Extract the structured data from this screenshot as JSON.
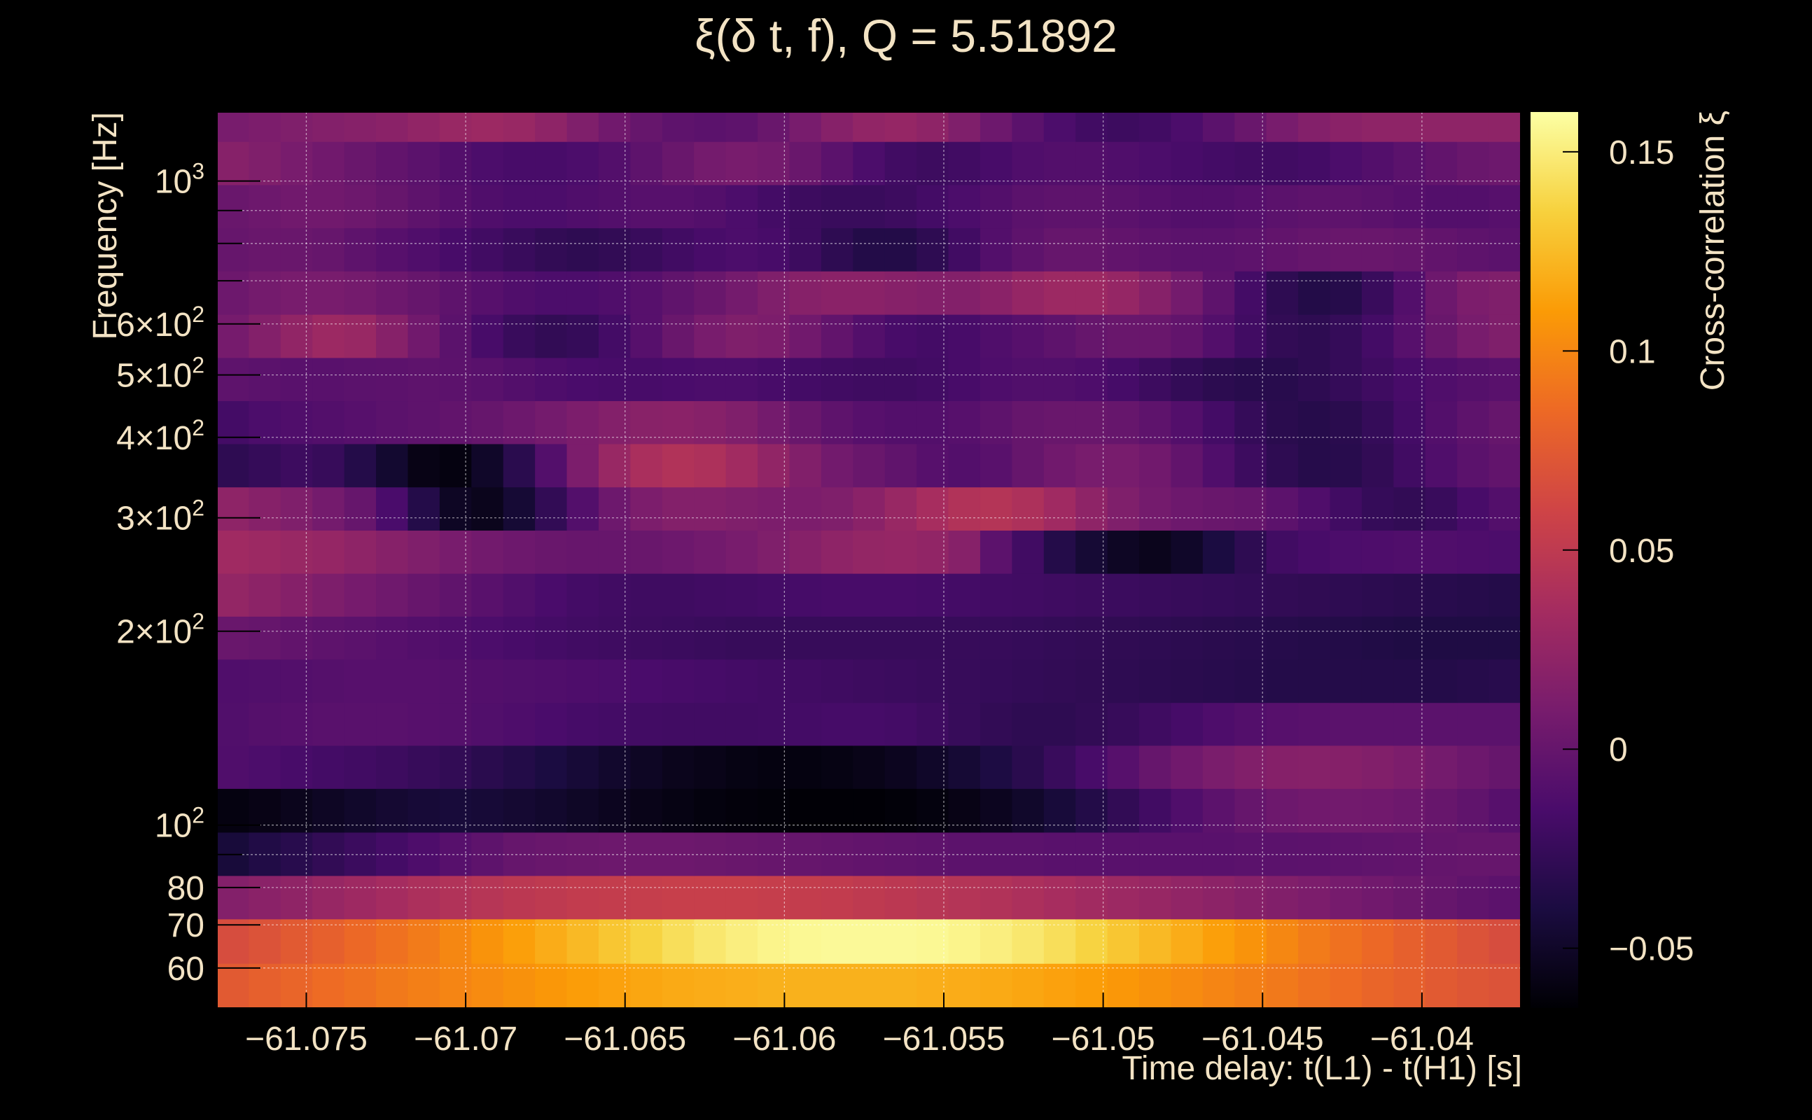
{
  "chart_data": {
    "type": "heatmap",
    "title": "ξ(δ t, f), Q = 5.51892",
    "xlabel": "Time delay: t(L1) - t(H1) [s]",
    "ylabel": "Frequency [Hz]",
    "colorbar_label": "Cross-correlation ξ",
    "xlim": [
      -61.0778,
      -61.0369
    ],
    "ylim": [
      52,
      1280
    ],
    "yscale": "log",
    "clim": [
      -0.065,
      0.16
    ],
    "x_ticks": [
      {
        "value": -61.075,
        "label": "−61.075"
      },
      {
        "value": -61.07,
        "label": "−61.07"
      },
      {
        "value": -61.065,
        "label": "−61.065"
      },
      {
        "value": -61.06,
        "label": "−61.06"
      },
      {
        "value": -61.055,
        "label": "−61.055"
      },
      {
        "value": -61.05,
        "label": "−61.05"
      },
      {
        "value": -61.045,
        "label": "−61.045"
      },
      {
        "value": -61.04,
        "label": "−61.04"
      }
    ],
    "y_ticks": [
      {
        "value": 60,
        "label": "60"
      },
      {
        "value": 70,
        "label": "70"
      },
      {
        "value": 80,
        "label": "80"
      },
      {
        "value": 100,
        "mant": "10",
        "exp": "2"
      },
      {
        "value": 200,
        "mant": "2×10",
        "exp": "2"
      },
      {
        "value": 300,
        "mant": "3×10",
        "exp": "2"
      },
      {
        "value": 400,
        "mant": "4×10",
        "exp": "2"
      },
      {
        "value": 500,
        "mant": "5×10",
        "exp": "2"
      },
      {
        "value": 600,
        "mant": "6×10",
        "exp": "2"
      },
      {
        "value": 1000,
        "mant": "10",
        "exp": "3"
      }
    ],
    "y_minor_ticks": [
      90,
      700,
      800,
      900
    ],
    "colorbar_ticks": [
      {
        "value": -0.05,
        "label": "−0.05"
      },
      {
        "value": 0,
        "label": "0"
      },
      {
        "value": 0.05,
        "label": "0.05"
      },
      {
        "value": 0.1,
        "label": "0.1"
      },
      {
        "value": 0.15,
        "label": "0.15"
      }
    ],
    "grid": true,
    "colormap_stops": [
      "#000004",
      "#1b0c41",
      "#4a0c6b",
      "#781c6d",
      "#a52c60",
      "#cf4446",
      "#ed6925",
      "#fb9b06",
      "#f7d13d",
      "#fcffa4"
    ],
    "time_bins": 41,
    "freq_bins": [
      {
        "low": 52,
        "high": 61
      },
      {
        "low": 61,
        "high": 71.5
      },
      {
        "low": 71.5,
        "high": 83.5
      },
      {
        "low": 83.5,
        "high": 97.5
      },
      {
        "low": 97.5,
        "high": 114
      },
      {
        "low": 114,
        "high": 133
      },
      {
        "low": 133,
        "high": 155
      },
      {
        "low": 155,
        "high": 181
      },
      {
        "low": 181,
        "high": 211
      },
      {
        "low": 211,
        "high": 246
      },
      {
        "low": 246,
        "high": 287
      },
      {
        "low": 287,
        "high": 335
      },
      {
        "low": 335,
        "high": 391
      },
      {
        "low": 391,
        "high": 456
      },
      {
        "low": 456,
        "high": 532
      },
      {
        "low": 532,
        "high": 621
      },
      {
        "low": 621,
        "high": 725
      },
      {
        "low": 725,
        "high": 846
      },
      {
        "low": 846,
        "high": 987
      },
      {
        "low": 987,
        "high": 1152
      },
      {
        "low": 1152,
        "high": 1280
      }
    ],
    "cells": [
      [
        0.075,
        0.079,
        0.082,
        0.086,
        0.089,
        0.093,
        0.096,
        0.099,
        0.102,
        0.105,
        0.108,
        0.111,
        0.113,
        0.115,
        0.117,
        0.118,
        0.119,
        0.12,
        0.12,
        0.12,
        0.12,
        0.12,
        0.119,
        0.118,
        0.117,
        0.115,
        0.113,
        0.111,
        0.108,
        0.105,
        0.102,
        0.099,
        0.096,
        0.093,
        0.089,
        0.086,
        0.082,
        0.079,
        0.075,
        0.072,
        0.07
      ],
      [
        0.066,
        0.07,
        0.075,
        0.079,
        0.084,
        0.089,
        0.094,
        0.1,
        0.106,
        0.112,
        0.118,
        0.124,
        0.13,
        0.136,
        0.142,
        0.147,
        0.151,
        0.154,
        0.156,
        0.157,
        0.157,
        0.157,
        0.156,
        0.154,
        0.151,
        0.147,
        0.142,
        0.136,
        0.13,
        0.124,
        0.118,
        0.112,
        0.106,
        0.1,
        0.094,
        0.089,
        0.084,
        0.079,
        0.075,
        0.07,
        0.066
      ],
      [
        0.016,
        0.02,
        0.023,
        0.027,
        0.031,
        0.035,
        0.039,
        0.042,
        0.045,
        0.048,
        0.05,
        0.052,
        0.053,
        0.054,
        0.055,
        0.055,
        0.055,
        0.054,
        0.053,
        0.052,
        0.05,
        0.048,
        0.046,
        0.044,
        0.042,
        0.039,
        0.036,
        0.033,
        0.03,
        0.027,
        0.024,
        0.021,
        0.018,
        0.015,
        0.012,
        0.009,
        0.006,
        0.003,
        0.0,
        -0.003,
        -0.005
      ],
      [
        -0.043,
        -0.037,
        -0.033,
        -0.028,
        -0.023,
        -0.018,
        -0.013,
        -0.008,
        -0.004,
        0.0,
        0.002,
        0.003,
        0.004,
        0.004,
        0.004,
        0.003,
        0.002,
        0.001,
        0.0,
        -0.001,
        -0.002,
        -0.003,
        -0.004,
        -0.005,
        -0.006,
        -0.006,
        -0.007,
        -0.007,
        -0.007,
        -0.007,
        -0.007,
        -0.007,
        -0.006,
        -0.006,
        -0.005,
        -0.004,
        -0.003,
        -0.002,
        -0.001,
        0.0,
        0.0
      ],
      [
        -0.06,
        -0.058,
        -0.055,
        -0.052,
        -0.049,
        -0.046,
        -0.044,
        -0.043,
        -0.044,
        -0.046,
        -0.048,
        -0.051,
        -0.054,
        -0.057,
        -0.059,
        -0.061,
        -0.062,
        -0.063,
        -0.064,
        -0.064,
        -0.064,
        -0.063,
        -0.061,
        -0.058,
        -0.054,
        -0.049,
        -0.043,
        -0.036,
        -0.028,
        -0.02,
        -0.012,
        -0.005,
        0.0,
        0.004,
        0.006,
        0.007,
        0.006,
        0.004,
        0.001,
        -0.003,
        -0.008
      ],
      [
        -0.012,
        -0.014,
        -0.016,
        -0.018,
        -0.02,
        -0.022,
        -0.025,
        -0.028,
        -0.032,
        -0.036,
        -0.04,
        -0.044,
        -0.048,
        -0.052,
        -0.055,
        -0.057,
        -0.059,
        -0.06,
        -0.06,
        -0.059,
        -0.057,
        -0.054,
        -0.05,
        -0.045,
        -0.039,
        -0.032,
        -0.024,
        -0.016,
        -0.008,
        0.0,
        0.006,
        0.011,
        0.015,
        0.017,
        0.018,
        0.017,
        0.015,
        0.012,
        0.008,
        0.004,
        0.0
      ],
      [
        -0.011,
        -0.009,
        -0.008,
        -0.007,
        -0.007,
        -0.007,
        -0.008,
        -0.009,
        -0.011,
        -0.013,
        -0.015,
        -0.017,
        -0.018,
        -0.019,
        -0.02,
        -0.02,
        -0.02,
        -0.019,
        -0.018,
        -0.017,
        -0.017,
        -0.018,
        -0.021,
        -0.025,
        -0.028,
        -0.03,
        -0.03,
        -0.028,
        -0.025,
        -0.021,
        -0.017,
        -0.013,
        -0.01,
        -0.008,
        -0.007,
        -0.006,
        -0.006,
        -0.006,
        -0.006,
        -0.006,
        -0.006
      ],
      [
        -0.012,
        -0.011,
        -0.01,
        -0.009,
        -0.008,
        -0.008,
        -0.008,
        -0.009,
        -0.01,
        -0.011,
        -0.012,
        -0.013,
        -0.014,
        -0.015,
        -0.016,
        -0.017,
        -0.018,
        -0.019,
        -0.02,
        -0.021,
        -0.022,
        -0.023,
        -0.024,
        -0.025,
        -0.026,
        -0.027,
        -0.028,
        -0.029,
        -0.03,
        -0.031,
        -0.032,
        -0.033,
        -0.034,
        -0.035,
        -0.035,
        -0.035,
        -0.035,
        -0.035,
        -0.035,
        -0.034,
        -0.033
      ],
      [
        0.002,
        0.0,
        -0.002,
        -0.004,
        -0.006,
        -0.008,
        -0.01,
        -0.012,
        -0.014,
        -0.016,
        -0.018,
        -0.02,
        -0.021,
        -0.022,
        -0.023,
        -0.024,
        -0.025,
        -0.025,
        -0.025,
        -0.025,
        -0.025,
        -0.025,
        -0.025,
        -0.025,
        -0.025,
        -0.026,
        -0.027,
        -0.028,
        -0.029,
        -0.03,
        -0.031,
        -0.032,
        -0.033,
        -0.034,
        -0.035,
        -0.036,
        -0.037,
        -0.038,
        -0.038,
        -0.038,
        -0.038
      ],
      [
        0.025,
        0.021,
        0.017,
        0.013,
        0.009,
        0.005,
        0.001,
        -0.003,
        -0.007,
        -0.011,
        -0.015,
        -0.018,
        -0.02,
        -0.021,
        -0.021,
        -0.02,
        -0.019,
        -0.018,
        -0.017,
        -0.016,
        -0.016,
        -0.016,
        -0.017,
        -0.018,
        -0.019,
        -0.02,
        -0.021,
        -0.022,
        -0.023,
        -0.024,
        -0.025,
        -0.026,
        -0.027,
        -0.028,
        -0.029,
        -0.03,
        -0.031,
        -0.032,
        -0.033,
        -0.034,
        -0.035
      ],
      [
        0.032,
        0.03,
        0.028,
        0.026,
        0.022,
        0.018,
        0.014,
        0.01,
        0.007,
        0.004,
        0.002,
        0.001,
        0.001,
        0.002,
        0.004,
        0.007,
        0.01,
        0.014,
        0.018,
        0.022,
        0.025,
        0.026,
        0.024,
        0.018,
        -0.005,
        -0.02,
        -0.035,
        -0.045,
        -0.052,
        -0.055,
        -0.05,
        -0.04,
        -0.03,
        -0.02,
        -0.016,
        -0.014,
        -0.013,
        -0.012,
        -0.012,
        -0.013,
        -0.014
      ],
      [
        0.022,
        0.018,
        0.014,
        0.008,
        0.0,
        -0.015,
        -0.035,
        -0.052,
        -0.055,
        -0.045,
        -0.028,
        -0.01,
        0.004,
        0.012,
        0.016,
        0.016,
        0.014,
        0.012,
        0.012,
        0.014,
        0.02,
        0.028,
        0.036,
        0.042,
        0.044,
        0.04,
        0.032,
        0.022,
        0.014,
        0.008,
        0.004,
        0.002,
        0.0,
        -0.005,
        -0.012,
        -0.02,
        -0.026,
        -0.028,
        -0.024,
        -0.016,
        -0.01
      ],
      [
        -0.03,
        -0.026,
        -0.022,
        -0.025,
        -0.035,
        -0.047,
        -0.058,
        -0.06,
        -0.05,
        -0.032,
        -0.01,
        0.012,
        0.028,
        0.038,
        0.042,
        0.04,
        0.033,
        0.024,
        0.015,
        0.007,
        0.002,
        -0.003,
        -0.008,
        -0.01,
        -0.007,
        0.0,
        0.006,
        0.01,
        0.01,
        0.006,
        -0.002,
        -0.012,
        -0.022,
        -0.03,
        -0.034,
        -0.033,
        -0.028,
        -0.02,
        -0.012,
        -0.006,
        -0.002
      ],
      [
        -0.018,
        -0.014,
        -0.012,
        -0.01,
        -0.008,
        -0.006,
        -0.004,
        -0.002,
        0.0,
        0.004,
        0.008,
        0.012,
        0.016,
        0.019,
        0.02,
        0.018,
        0.014,
        0.008,
        0.002,
        -0.004,
        -0.008,
        -0.01,
        -0.01,
        -0.008,
        -0.004,
        0.0,
        0.002,
        0.002,
        0.0,
        -0.004,
        -0.01,
        -0.018,
        -0.026,
        -0.032,
        -0.034,
        -0.032,
        -0.026,
        -0.018,
        -0.01,
        -0.004,
        0.0
      ],
      [
        -0.004,
        -0.006,
        -0.007,
        -0.007,
        -0.006,
        -0.005,
        -0.004,
        -0.005,
        -0.007,
        -0.01,
        -0.013,
        -0.015,
        -0.016,
        -0.016,
        -0.015,
        -0.014,
        -0.014,
        -0.016,
        -0.018,
        -0.02,
        -0.021,
        -0.021,
        -0.019,
        -0.016,
        -0.013,
        -0.011,
        -0.011,
        -0.013,
        -0.017,
        -0.022,
        -0.027,
        -0.031,
        -0.033,
        -0.033,
        -0.03,
        -0.026,
        -0.021,
        -0.016,
        -0.012,
        -0.009,
        -0.007
      ],
      [
        0.009,
        0.016,
        0.024,
        0.03,
        0.028,
        0.018,
        0.006,
        -0.006,
        -0.016,
        -0.024,
        -0.028,
        -0.026,
        -0.018,
        -0.008,
        0.002,
        0.01,
        0.014,
        0.012,
        0.006,
        -0.002,
        -0.01,
        -0.016,
        -0.018,
        -0.016,
        -0.012,
        -0.008,
        -0.004,
        0.0,
        0.002,
        0.002,
        -0.002,
        -0.01,
        -0.02,
        -0.028,
        -0.03,
        -0.026,
        -0.018,
        -0.008,
        0.002,
        0.01,
        0.014
      ],
      [
        0.004,
        0.008,
        0.01,
        0.01,
        0.008,
        0.004,
        0.0,
        -0.004,
        -0.008,
        -0.012,
        -0.014,
        -0.014,
        -0.012,
        -0.008,
        -0.003,
        0.002,
        0.008,
        0.014,
        0.018,
        0.02,
        0.02,
        0.018,
        0.016,
        0.016,
        0.02,
        0.026,
        0.03,
        0.03,
        0.026,
        0.018,
        0.008,
        -0.004,
        -0.018,
        -0.03,
        -0.036,
        -0.034,
        -0.024,
        -0.01,
        0.004,
        0.012,
        0.014
      ],
      [
        0.0,
        0.002,
        0.002,
        0.0,
        -0.004,
        -0.008,
        -0.012,
        -0.016,
        -0.02,
        -0.024,
        -0.028,
        -0.03,
        -0.028,
        -0.024,
        -0.02,
        -0.016,
        -0.014,
        -0.016,
        -0.022,
        -0.03,
        -0.036,
        -0.036,
        -0.03,
        -0.02,
        -0.01,
        -0.004,
        0.0,
        0.0,
        -0.002,
        -0.004,
        -0.006,
        -0.006,
        -0.004,
        -0.002,
        0.0,
        0.002,
        0.002,
        0.0,
        -0.002,
        -0.004,
        -0.006
      ],
      [
        0.002,
        0.004,
        0.006,
        0.006,
        0.004,
        0.0,
        -0.004,
        -0.008,
        -0.012,
        -0.014,
        -0.014,
        -0.012,
        -0.01,
        -0.008,
        -0.008,
        -0.01,
        -0.014,
        -0.018,
        -0.022,
        -0.024,
        -0.024,
        -0.022,
        -0.018,
        -0.014,
        -0.01,
        -0.006,
        -0.004,
        -0.004,
        -0.006,
        -0.008,
        -0.01,
        -0.01,
        -0.008,
        -0.006,
        -0.004,
        -0.004,
        -0.006,
        -0.008,
        -0.01,
        -0.01,
        -0.008
      ],
      [
        0.018,
        0.014,
        0.01,
        0.006,
        0.002,
        -0.002,
        -0.006,
        -0.01,
        -0.014,
        -0.016,
        -0.016,
        -0.014,
        -0.01,
        -0.004,
        0.002,
        0.008,
        0.01,
        0.008,
        0.002,
        -0.006,
        -0.014,
        -0.02,
        -0.022,
        -0.02,
        -0.016,
        -0.012,
        -0.01,
        -0.01,
        -0.012,
        -0.014,
        -0.016,
        -0.018,
        -0.02,
        -0.02,
        -0.018,
        -0.014,
        -0.01,
        -0.006,
        -0.002,
        0.002,
        0.004
      ],
      [
        0.01,
        0.012,
        0.014,
        0.016,
        0.018,
        0.02,
        0.024,
        0.028,
        0.03,
        0.028,
        0.022,
        0.014,
        0.006,
        0.0,
        -0.004,
        -0.006,
        -0.004,
        0.002,
        0.01,
        0.018,
        0.024,
        0.026,
        0.022,
        0.014,
        0.004,
        -0.006,
        -0.014,
        -0.02,
        -0.022,
        -0.02,
        -0.014,
        -0.006,
        0.002,
        0.01,
        0.016,
        0.02,
        0.022,
        0.022,
        0.022,
        0.022,
        0.022
      ]
    ]
  }
}
